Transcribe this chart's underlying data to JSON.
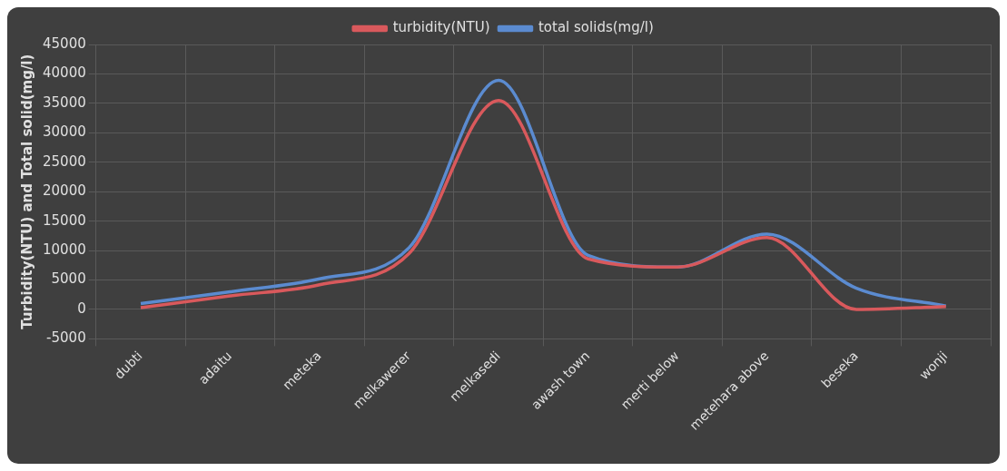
{
  "chart_data": {
    "type": "line",
    "ylabel": "Turbidity(NTU) and Total solid(mg/l)",
    "categories": [
      "dubti",
      "adaitu",
      "meteka",
      "melkawerer",
      "melkasedi",
      "awash town",
      "merti below",
      "metehara above",
      "beseka",
      "wonji"
    ],
    "series": [
      {
        "name": "turbidity(NTU)",
        "color": "#d9595c",
        "values": [
          300,
          2300,
          4200,
          9500,
          35500,
          8600,
          7200,
          12200,
          0,
          500
        ]
      },
      {
        "name": "total solids(mg/l)",
        "color": "#5b8bd0",
        "values": [
          1000,
          3000,
          5200,
          10500,
          38900,
          9200,
          7200,
          12800,
          3600,
          600
        ]
      }
    ],
    "ylim": [
      -5000,
      45000
    ],
    "yticks": [
      -5000,
      0,
      5000,
      10000,
      15000,
      20000,
      25000,
      30000,
      35000,
      40000,
      45000
    ],
    "grid": true,
    "legend": "top",
    "marker": "none",
    "line_style": "solid"
  }
}
